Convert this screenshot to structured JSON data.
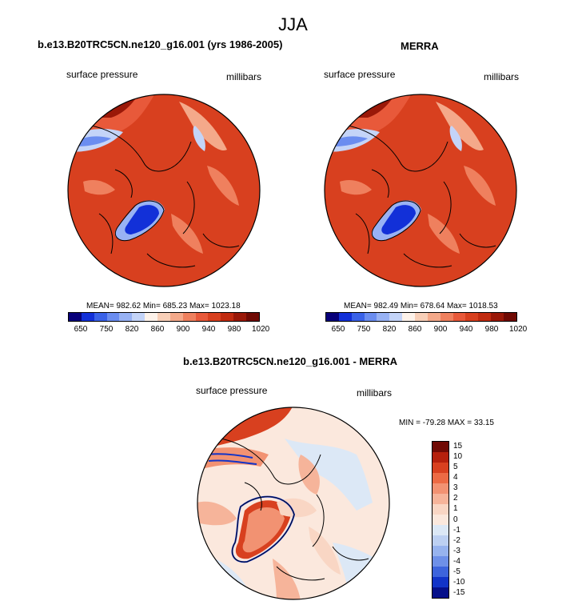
{
  "figure": {
    "title": "JJA"
  },
  "panels": {
    "left": {
      "title": "b.e13.B20TRC5CN.ne120_g16.001 (yrs 1986-2005)",
      "field_label": "surface pressure",
      "units_label": "millibars",
      "stats": "MEAN= 982.62  Min= 685.23  Max= 1023.18"
    },
    "right": {
      "title": "MERRA",
      "field_label": "surface pressure",
      "units_label": "millibars",
      "stats": "MEAN= 982.49  Min= 678.64  Max= 1018.53"
    },
    "diff": {
      "title": "b.e13.B20TRC5CN.ne120_g16.001 - MERRA",
      "field_label": "surface pressure",
      "units_label": "millibars",
      "stats": "MIN = -79.28 MAX =  33.15"
    }
  },
  "colorbars": {
    "abs": {
      "colors": [
        "#08007a",
        "#1230d8",
        "#3a62e8",
        "#6b8df0",
        "#98b2f4",
        "#c4d4f8",
        "#fdf2ea",
        "#f8cfb8",
        "#f4a98a",
        "#ef805e",
        "#e8593a",
        "#d8401f",
        "#c12b10",
        "#9a1808",
        "#700a04"
      ],
      "tick_labels": [
        "650",
        "750",
        "820",
        "860",
        "900",
        "940",
        "980",
        "1020"
      ]
    },
    "diff": {
      "colors": [
        "#700a04",
        "#b5200c",
        "#d8401f",
        "#ec6a44",
        "#f29272",
        "#f6b49a",
        "#f9d6c4",
        "#fbe8dd",
        "#dce8f6",
        "#bdd0f2",
        "#97b3ee",
        "#6e90e8",
        "#3d64dc",
        "#1234c8",
        "#06108a"
      ],
      "tick_labels": [
        "15",
        "10",
        "5",
        "4",
        "3",
        "2",
        "1",
        "0",
        "-1",
        "-2",
        "-3",
        "-4",
        "-5",
        "-10",
        "-15"
      ]
    }
  },
  "chart_data": [
    {
      "type": "heatmap",
      "title": "b.e13.B20TRC5CN.ne120_g16.001 (yrs 1986-2005)",
      "variable": "surface pressure",
      "units": "millibars",
      "season": "JJA",
      "projection": "polar-stereographic",
      "mean": 982.62,
      "min": 685.23,
      "max": 1023.18,
      "levels": [
        650,
        750,
        820,
        860,
        900,
        940,
        980,
        1020
      ]
    },
    {
      "type": "heatmap",
      "title": "MERRA",
      "variable": "surface pressure",
      "units": "millibars",
      "season": "JJA",
      "projection": "polar-stereographic",
      "mean": 982.49,
      "min": 678.64,
      "max": 1018.53,
      "levels": [
        650,
        750,
        820,
        860,
        900,
        940,
        980,
        1020
      ]
    },
    {
      "type": "heatmap",
      "title": "b.e13.B20TRC5CN.ne120_g16.001 - MERRA",
      "variable": "surface pressure",
      "units": "millibars",
      "season": "JJA",
      "projection": "polar-stereographic",
      "min": -79.28,
      "max": 33.15,
      "levels": [
        -15,
        -10,
        -5,
        -4,
        -3,
        -2,
        -1,
        0,
        1,
        2,
        3,
        4,
        5,
        10,
        15
      ]
    }
  ]
}
